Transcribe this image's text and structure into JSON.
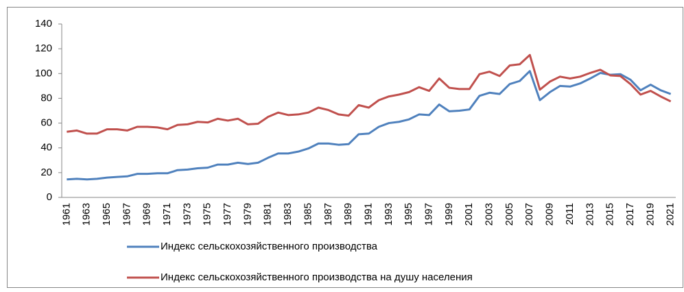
{
  "chart_data": {
    "type": "line",
    "categories": [
      "1961",
      null,
      "1963",
      null,
      "1965",
      null,
      "1967",
      null,
      "1969",
      null,
      "1971",
      null,
      "1973",
      null,
      "1975",
      null,
      "1977",
      null,
      "1979",
      null,
      "1981",
      null,
      "1983",
      null,
      "1985",
      null,
      "1987",
      null,
      "1989",
      null,
      "1991",
      null,
      "1993",
      null,
      "1995",
      null,
      "1997",
      null,
      "1999",
      null,
      "2001",
      null,
      "2003",
      null,
      "2005",
      null,
      "2007",
      null,
      "2009",
      null,
      "2011",
      null,
      "2013",
      null,
      "2015",
      null,
      "2017",
      null,
      "2019",
      null,
      "2021"
    ],
    "series": [
      {
        "name": "Индекс сельскохозяйственного производства",
        "color": "#4f81bd",
        "values": [
          14.5,
          15,
          14.5,
          15,
          16,
          16.5,
          17,
          19,
          19,
          19.5,
          19.5,
          22,
          22.5,
          23.5,
          24,
          26.5,
          26.5,
          28,
          27,
          28,
          32,
          35.5,
          35.5,
          37,
          39.5,
          43.5,
          43.5,
          42.5,
          43,
          51,
          51.5,
          57,
          60,
          61,
          63,
          67,
          66.5,
          75,
          69.5,
          70,
          71,
          82,
          84.5,
          83.5,
          91.5,
          94,
          102,
          78.5,
          85,
          90,
          89.5,
          92,
          96,
          100.5,
          99,
          99.5,
          95,
          86.5,
          91,
          86.5,
          83.5
        ]
      },
      {
        "name": "Индекс сельскохозяйственного производства на душу населения",
        "color": "#c0504d",
        "values": [
          53,
          54,
          51.5,
          51.5,
          55,
          55,
          54,
          57,
          57,
          56.5,
          55,
          58.5,
          59,
          61,
          60.5,
          63.5,
          62,
          63.5,
          59,
          59.5,
          65,
          68.5,
          66.5,
          67,
          68.5,
          72.5,
          70.5,
          67,
          66,
          74.5,
          72.5,
          78.5,
          81.5,
          83,
          85,
          89,
          86,
          96,
          88.5,
          87.5,
          87.5,
          99.5,
          101.5,
          98,
          106.5,
          107.5,
          115,
          87,
          93.5,
          97.5,
          96,
          97.5,
          100.5,
          103,
          98.5,
          98,
          91.5,
          83,
          86,
          81.5,
          77.5
        ]
      }
    ],
    "ylim": [
      0,
      140
    ],
    "yticks": [
      0,
      20,
      40,
      60,
      80,
      100,
      120,
      140
    ]
  }
}
